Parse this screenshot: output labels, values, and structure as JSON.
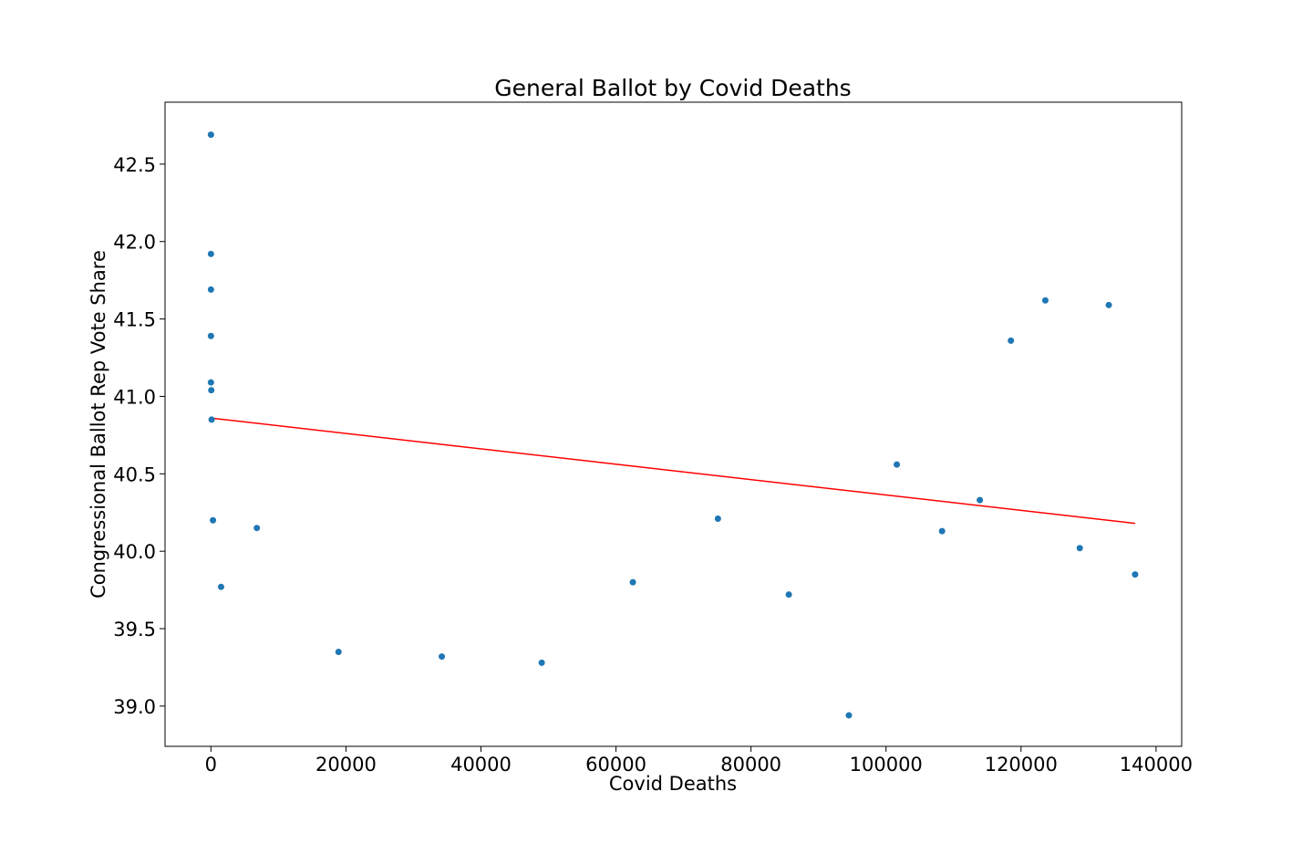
{
  "chart_data": {
    "type": "scatter",
    "title": "General Ballot by Covid Deaths",
    "xlabel": "Covid Deaths",
    "ylabel": "Congressional Ballot Rep Vote Share",
    "xlim": [
      -6800,
      143800
    ],
    "ylim": [
      38.74,
      42.9
    ],
    "xticks": [
      0,
      20000,
      40000,
      60000,
      80000,
      100000,
      120000,
      140000
    ],
    "xtick_labels": [
      "0",
      "20000",
      "40000",
      "60000",
      "80000",
      "100000",
      "120000",
      "140000"
    ],
    "yticks": [
      39.0,
      39.5,
      40.0,
      40.5,
      41.0,
      41.5,
      42.0,
      42.5
    ],
    "ytick_labels": [
      "39.0",
      "39.5",
      "40.0",
      "40.5",
      "41.0",
      "41.5",
      "42.0",
      "42.5"
    ],
    "grid": false,
    "marker_color": "#1f77b4",
    "fit_line_color": "#ff0000",
    "points": [
      {
        "x": 0,
        "y": 42.69
      },
      {
        "x": 0,
        "y": 41.92
      },
      {
        "x": 0,
        "y": 41.69
      },
      {
        "x": 0,
        "y": 41.39
      },
      {
        "x": 0,
        "y": 41.09
      },
      {
        "x": 50,
        "y": 41.04
      },
      {
        "x": 100,
        "y": 40.85
      },
      {
        "x": 300,
        "y": 40.2
      },
      {
        "x": 1500,
        "y": 39.77
      },
      {
        "x": 6800,
        "y": 40.15
      },
      {
        "x": 18900,
        "y": 39.35
      },
      {
        "x": 34200,
        "y": 39.32
      },
      {
        "x": 49000,
        "y": 39.28
      },
      {
        "x": 62500,
        "y": 39.8
      },
      {
        "x": 75100,
        "y": 40.21
      },
      {
        "x": 85600,
        "y": 39.72
      },
      {
        "x": 94500,
        "y": 38.94
      },
      {
        "x": 101600,
        "y": 40.56
      },
      {
        "x": 108300,
        "y": 40.13
      },
      {
        "x": 113900,
        "y": 40.33
      },
      {
        "x": 118500,
        "y": 41.36
      },
      {
        "x": 123600,
        "y": 41.62
      },
      {
        "x": 128700,
        "y": 40.02
      },
      {
        "x": 133000,
        "y": 41.59
      },
      {
        "x": 136900,
        "y": 39.85
      }
    ],
    "fit_line": {
      "x": [
        0,
        136900
      ],
      "y": [
        40.86,
        40.18
      ]
    }
  }
}
